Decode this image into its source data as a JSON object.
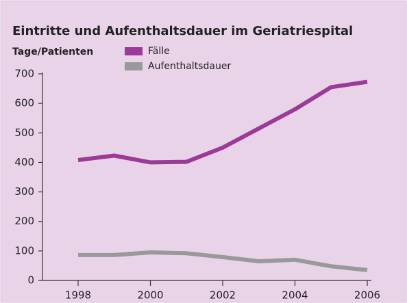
{
  "chart_data": {
    "type": "line",
    "title": "Eintritte und Aufenthaltsdauer im Geriatriespital",
    "y_label": "Tage/Patienten",
    "x": [
      1998,
      1999,
      2000,
      2001,
      2002,
      2003,
      2004,
      2005,
      2006
    ],
    "series": [
      {
        "name": "Fälle",
        "color": "#9c3a98",
        "values": [
          408,
          423,
          400,
          402,
          450,
          515,
          580,
          655,
          673
        ]
      },
      {
        "name": "Aufenthaltsdauer",
        "color": "#999999",
        "values": [
          86,
          86,
          95,
          92,
          79,
          65,
          70,
          48,
          35
        ]
      }
    ],
    "xlim": [
      1998,
      2006
    ],
    "xticks": [
      1998,
      2000,
      2002,
      2004,
      2006
    ],
    "ylim": [
      0,
      700
    ],
    "yticks": [
      0,
      100,
      200,
      300,
      400,
      500,
      600,
      700
    ]
  }
}
